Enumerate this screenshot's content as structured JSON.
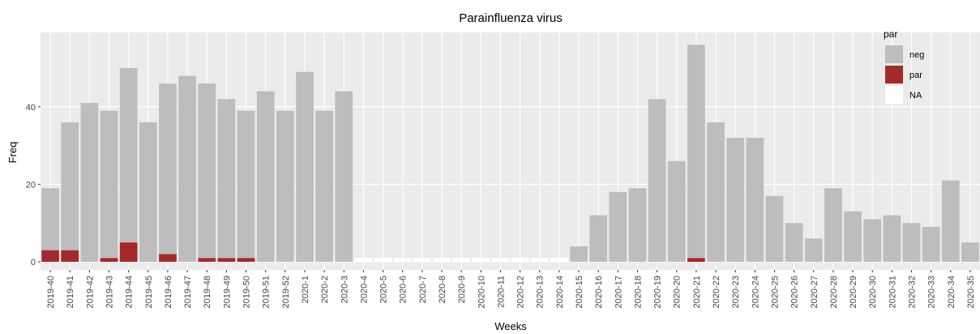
{
  "chart_data": {
    "type": "stacked_bar",
    "title": "Parainfluenza virus",
    "x_label": "Weeks",
    "y_label": "Freq",
    "legend_title": "par",
    "legend_position": "top-right",
    "grid": true,
    "categories": [
      "2019-40",
      "2019-41",
      "2019-42",
      "2019-43",
      "2019-44",
      "2019-45",
      "2019-46",
      "2019-47",
      "2019-48",
      "2019-49",
      "2019-50",
      "2019-51",
      "2019-52",
      "2020-1",
      "2020-2",
      "2020-3",
      "2020-4",
      "2020-5",
      "2020-6",
      "2020-7",
      "2020-8",
      "2020-9",
      "2020-10",
      "2020-11",
      "2020-12",
      "2020-13",
      "2020-14",
      "2020-15",
      "2020-16",
      "2020-17",
      "2020-18",
      "2020-19",
      "2020-20",
      "2020-21",
      "2020-22",
      "2020-23",
      "2020-24",
      "2020-25",
      "2020-26",
      "2020-27",
      "2020-28",
      "2020-29",
      "2020-30",
      "2020-31",
      "2020-32",
      "2020-33",
      "2020-34",
      "2020-35"
    ],
    "series": [
      {
        "name": "neg",
        "color": "#bdbdbd",
        "values": [
          16,
          33,
          41,
          38,
          45,
          36,
          44,
          48,
          45,
          41,
          38,
          44,
          39,
          49,
          39,
          44,
          null,
          null,
          null,
          null,
          null,
          null,
          null,
          null,
          null,
          null,
          null,
          4,
          12,
          18,
          19,
          42,
          26,
          55,
          36,
          32,
          32,
          17,
          10,
          6,
          19,
          13,
          11,
          12,
          10,
          9,
          21,
          5
        ]
      },
      {
        "name": "par",
        "color": "#a52a2a",
        "values": [
          3,
          3,
          null,
          1,
          5,
          null,
          2,
          null,
          1,
          1,
          1,
          null,
          null,
          null,
          null,
          null,
          null,
          null,
          null,
          null,
          null,
          null,
          null,
          null,
          null,
          null,
          null,
          null,
          null,
          null,
          null,
          null,
          null,
          1,
          null,
          null,
          null,
          null,
          null,
          null,
          null,
          null,
          null,
          null,
          null,
          null,
          null,
          null
        ]
      },
      {
        "name": "NA",
        "color": "#ffffff",
        "values": [
          null,
          null,
          null,
          null,
          null,
          null,
          null,
          null,
          null,
          null,
          null,
          null,
          null,
          null,
          null,
          null,
          1,
          1,
          1,
          1,
          1,
          1,
          1,
          1,
          1,
          1,
          1,
          null,
          null,
          null,
          null,
          null,
          null,
          null,
          null,
          null,
          null,
          null,
          null,
          null,
          null,
          null,
          null,
          null,
          null,
          null,
          null,
          null
        ]
      }
    ],
    "ylim": [
      -2.1,
      59.2
    ],
    "yticks": [
      0,
      20,
      40
    ]
  }
}
